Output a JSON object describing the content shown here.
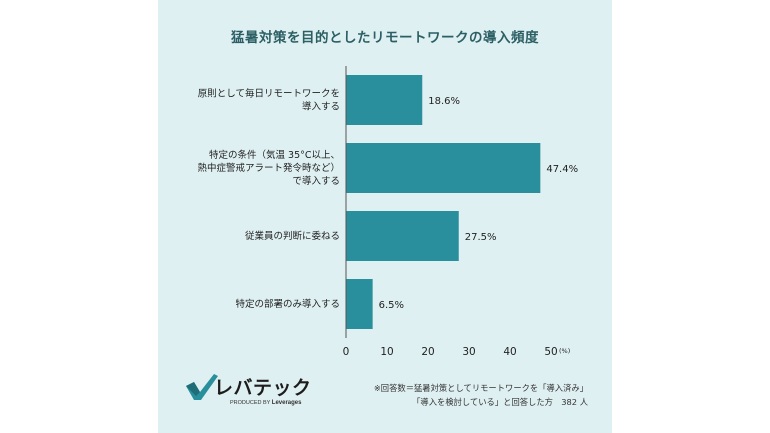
{
  "chart_data": {
    "type": "bar",
    "orientation": "horizontal",
    "title": "猛暑対策を目的としたリモートワークの導入頻度",
    "categories": [
      [
        "原則として毎日リモートワークを",
        "導入する"
      ],
      [
        "特定の条件（気温 35°C以上、",
        "熱中症警戒アラート発令時など）",
        "で導入する"
      ],
      [
        "従業員の判断に委ねる"
      ],
      [
        "特定の部署のみ導入する"
      ]
    ],
    "values": [
      18.6,
      47.4,
      27.5,
      6.5
    ],
    "value_labels": [
      "18.6%",
      "47.4%",
      "27.5%",
      "6.5%"
    ],
    "xlim": [
      0,
      50
    ],
    "ticks": [
      "0",
      "10",
      "20",
      "30",
      "40",
      "50"
    ],
    "unit": "(%)",
    "bar_color": "#2a8f9c",
    "grid": false
  },
  "logo": {
    "brand": "レバテック",
    "produced_by": "PRODUCED BY",
    "company": "Leverages"
  },
  "note": {
    "line1": "※回答数＝猛暑対策としてリモートワークを「導入済み」",
    "line2": "「導入を検討している」と回答した方　382 人"
  },
  "colors": {
    "background": "#dff0f3",
    "title": "#2b5f63",
    "logo_check": "#2a8f9c"
  }
}
